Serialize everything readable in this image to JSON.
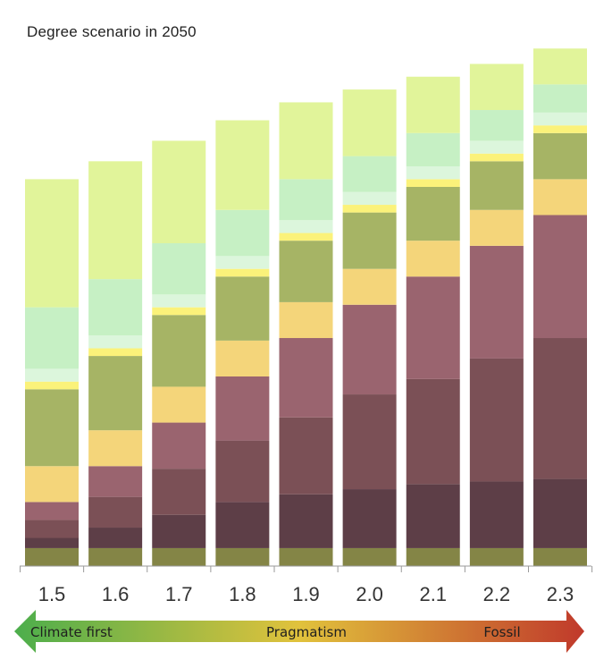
{
  "chart_data": {
    "type": "bar",
    "stacked": true,
    "title": "Degree scenario in 2050",
    "xlabel": "",
    "ylabel": "",
    "ylim": [
      0,
      100
    ],
    "categories": [
      "1.5",
      "1.6",
      "1.7",
      "1.8",
      "1.9",
      "2.0",
      "2.1",
      "2.2",
      "2.3"
    ],
    "series": [
      {
        "name": "layer-1",
        "color": "#848546",
        "values": [
          3.5,
          3.5,
          3.5,
          3.5,
          3.5,
          3.5,
          3.5,
          3.5,
          3.5
        ]
      },
      {
        "name": "layer-2",
        "color": "#5d3e47",
        "values": [
          2,
          4,
          6.5,
          9,
          10.5,
          11.5,
          12.5,
          13,
          13.5
        ]
      },
      {
        "name": "layer-3",
        "color": "#7b5056",
        "values": [
          3.5,
          6,
          9,
          12,
          15,
          18.5,
          20.5,
          24,
          27.5
        ]
      },
      {
        "name": "layer-4",
        "color": "#9a646f",
        "values": [
          3.5,
          6,
          9,
          12.5,
          15.5,
          17.5,
          20,
          22,
          24
        ]
      },
      {
        "name": "layer-5",
        "color": "#f4d57a",
        "values": [
          7,
          7,
          7,
          7,
          7,
          7,
          7,
          7,
          7
        ]
      },
      {
        "name": "layer-6",
        "color": "#a6b465",
        "values": [
          15,
          14.5,
          14,
          12.5,
          12,
          11,
          10.5,
          9.5,
          9
        ]
      },
      {
        "name": "layer-7",
        "color": "#fbf27a",
        "values": [
          1.5,
          1.5,
          1.5,
          1.5,
          1.5,
          1.5,
          1.5,
          1.5,
          1.5
        ]
      },
      {
        "name": "layer-8",
        "color": "#dcf6dc",
        "values": [
          2.5,
          2.5,
          2.5,
          2.5,
          2.5,
          2.5,
          2.5,
          2.5,
          2.5
        ]
      },
      {
        "name": "layer-9",
        "color": "#c6f0c4",
        "values": [
          12,
          11,
          10,
          9,
          8,
          7,
          6.5,
          6,
          5.5
        ]
      },
      {
        "name": "layer-10",
        "color": "#e1f49a",
        "values": [
          25,
          23,
          20,
          17.5,
          15,
          13,
          11,
          9,
          7
        ]
      }
    ]
  },
  "axis_arrow": {
    "left_label": "Climate first",
    "center_label": "Pragmatism",
    "right_label": "Fossil",
    "colors": [
      "#4cae4c",
      "#e1c23c",
      "#c0392b"
    ]
  }
}
